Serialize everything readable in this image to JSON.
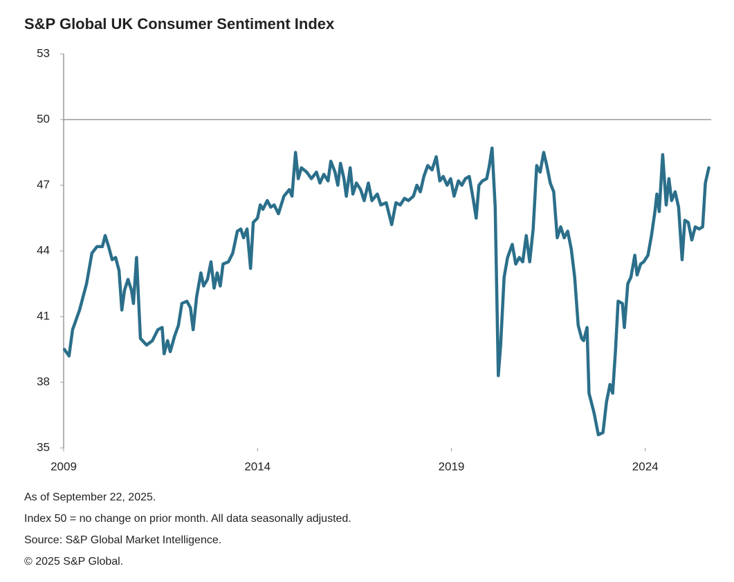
{
  "chart_data": {
    "type": "line",
    "title": "S&P Global UK Consumer Sentiment Index",
    "notes": [
      "As of September 22, 2025.",
      "Index 50 = no change on prior month. All data seasonally adjusted.",
      "Source: S&P Global Market Intelligence.",
      "© 2025 S&P Global."
    ],
    "color": "#2b6f8a",
    "xlim": [
      2009,
      2025.7
    ],
    "xticks": [
      2009,
      2014,
      2019,
      2024
    ],
    "ylim": [
      35,
      53
    ],
    "yticks": [
      35,
      38,
      41,
      44,
      47,
      50,
      53
    ],
    "reference_line": 50,
    "x": [
      2009.02,
      2009.14,
      2009.23,
      2009.41,
      2009.59,
      2009.73,
      2009.86,
      2010.0,
      2010.07,
      2010.16,
      2010.25,
      2010.34,
      2010.43,
      2010.5,
      2010.57,
      2010.66,
      2010.75,
      2010.8,
      2010.88,
      2010.98,
      2011.14,
      2011.29,
      2011.43,
      2011.54,
      2011.59,
      2011.68,
      2011.75,
      2011.86,
      2011.96,
      2012.05,
      2012.18,
      2012.27,
      2012.34,
      2012.43,
      2012.54,
      2012.61,
      2012.71,
      2012.8,
      2012.88,
      2012.96,
      2013.04,
      2013.11,
      2013.25,
      2013.36,
      2013.48,
      2013.57,
      2013.64,
      2013.73,
      2013.82,
      2013.89,
      2014.0,
      2014.07,
      2014.14,
      2014.25,
      2014.34,
      2014.43,
      2014.54,
      2014.68,
      2014.82,
      2014.89,
      2014.98,
      2015.05,
      2015.13,
      2015.27,
      2015.39,
      2015.52,
      2015.61,
      2015.71,
      2015.82,
      2015.89,
      2016.0,
      2016.07,
      2016.14,
      2016.23,
      2016.29,
      2016.39,
      2016.46,
      2016.55,
      2016.66,
      2016.75,
      2016.86,
      2016.95,
      2017.09,
      2017.18,
      2017.32,
      2017.46,
      2017.57,
      2017.68,
      2017.79,
      2017.89,
      2018.02,
      2018.11,
      2018.2,
      2018.29,
      2018.39,
      2018.5,
      2018.61,
      2018.7,
      2018.79,
      2018.89,
      2018.98,
      2019.07,
      2019.18,
      2019.27,
      2019.36,
      2019.46,
      2019.57,
      2019.64,
      2019.71,
      2019.8,
      2019.91,
      2019.98,
      2020.05,
      2020.13,
      2020.21,
      2020.27,
      2020.36,
      2020.45,
      2020.57,
      2020.66,
      2020.75,
      2020.84,
      2020.93,
      2021.02,
      2021.11,
      2021.2,
      2021.29,
      2021.38,
      2021.46,
      2021.55,
      2021.64,
      2021.73,
      2021.82,
      2021.91,
      2022.0,
      2022.09,
      2022.18,
      2022.27,
      2022.36,
      2022.41,
      2022.5,
      2022.55,
      2022.68,
      2022.79,
      2022.91,
      2023.0,
      2023.09,
      2023.16,
      2023.23,
      2023.3,
      2023.41,
      2023.46,
      2023.55,
      2023.63,
      2023.73,
      2023.79,
      2023.88,
      2023.96,
      2024.07,
      2024.16,
      2024.25,
      2024.3,
      2024.36,
      2024.45,
      2024.54,
      2024.61,
      2024.68,
      2024.77,
      2024.86,
      2024.95,
      2025.02,
      2025.11,
      2025.2,
      2025.29,
      2025.39,
      2025.48,
      2025.55,
      2025.64
    ],
    "values": [
      39.5,
      39.2,
      40.4,
      41.3,
      42.5,
      43.9,
      44.2,
      44.2,
      44.7,
      44.2,
      43.6,
      43.7,
      43.1,
      41.3,
      42.2,
      42.7,
      42.2,
      41.6,
      43.7,
      40.0,
      39.7,
      39.9,
      40.4,
      40.5,
      39.3,
      39.9,
      39.4,
      40.1,
      40.6,
      41.6,
      41.7,
      41.4,
      40.4,
      41.9,
      43.0,
      42.4,
      42.7,
      43.5,
      42.3,
      43.0,
      42.4,
      43.4,
      43.5,
      43.9,
      44.9,
      45.0,
      44.6,
      45.0,
      43.2,
      45.3,
      45.5,
      46.1,
      45.9,
      46.3,
      46.0,
      46.1,
      45.7,
      46.5,
      46.8,
      46.5,
      48.5,
      47.3,
      47.8,
      47.6,
      47.3,
      47.6,
      47.1,
      47.5,
      47.2,
      48.1,
      47.6,
      47.0,
      48.0,
      47.3,
      46.5,
      47.8,
      46.6,
      47.1,
      46.8,
      46.3,
      47.1,
      46.3,
      46.6,
      46.1,
      46.2,
      45.2,
      46.2,
      46.1,
      46.4,
      46.3,
      46.5,
      47.0,
      46.7,
      47.4,
      47.9,
      47.7,
      48.3,
      47.2,
      47.4,
      47.0,
      47.3,
      46.5,
      47.2,
      47.0,
      47.3,
      47.4,
      46.3,
      45.5,
      47.0,
      47.2,
      47.3,
      47.9,
      48.7,
      46.0,
      38.3,
      39.7,
      42.8,
      43.7,
      44.3,
      43.4,
      43.7,
      43.5,
      44.7,
      43.5,
      45.0,
      47.9,
      47.6,
      48.5,
      47.9,
      47.1,
      46.7,
      44.6,
      45.1,
      44.6,
      44.9,
      44.1,
      42.8,
      40.6,
      40.0,
      39.9,
      40.5,
      37.5,
      36.6,
      35.6,
      35.7,
      37.1,
      37.9,
      37.5,
      39.4,
      41.7,
      41.6,
      40.5,
      42.5,
      42.8,
      43.8,
      42.9,
      43.4,
      43.5,
      43.8,
      44.7,
      45.8,
      46.6,
      45.8,
      48.4,
      46.1,
      47.3,
      46.3,
      46.7,
      46.0,
      43.6,
      45.4,
      45.3,
      44.5,
      45.1,
      45.0,
      45.1,
      47.1,
      47.8
    ]
  }
}
